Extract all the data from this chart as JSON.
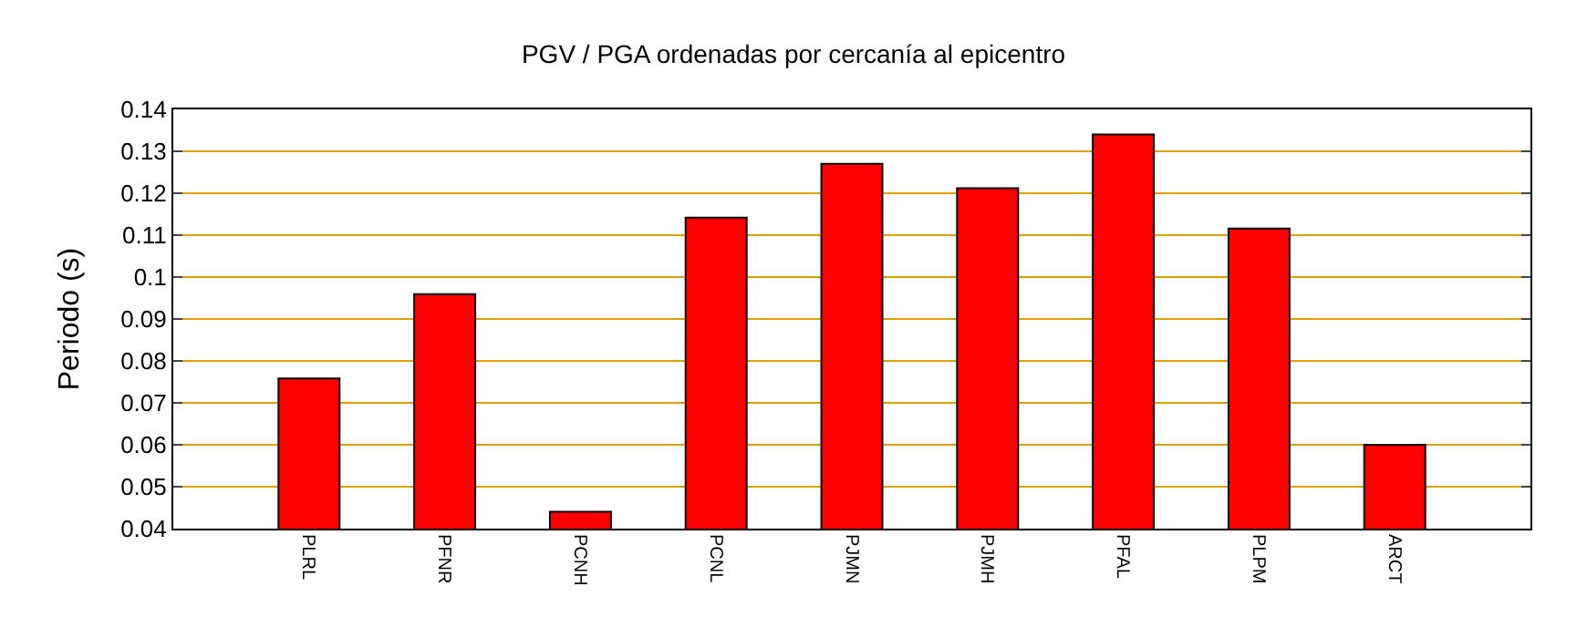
{
  "chart_data": {
    "type": "bar",
    "title": "PGV / PGA ordenadas por cercanía al epicentro",
    "ylabel": "Periodo (s)",
    "categories": [
      "PLRL",
      "PFNR",
      "PCNH",
      "PCNL",
      "PJMN",
      "PJMH",
      "PFAL",
      "PLPM",
      "ARCT"
    ],
    "values": [
      0.0758,
      0.0959,
      0.044,
      0.1142,
      0.127,
      0.1212,
      0.134,
      0.1116,
      0.06
    ],
    "color": "#ff0000",
    "ylim": [
      0.04,
      0.14
    ],
    "yticks": [
      0.04,
      0.05,
      0.06,
      0.07,
      0.08,
      0.09,
      0.1,
      0.11,
      0.12,
      0.13,
      0.14
    ],
    "grid": "y"
  }
}
